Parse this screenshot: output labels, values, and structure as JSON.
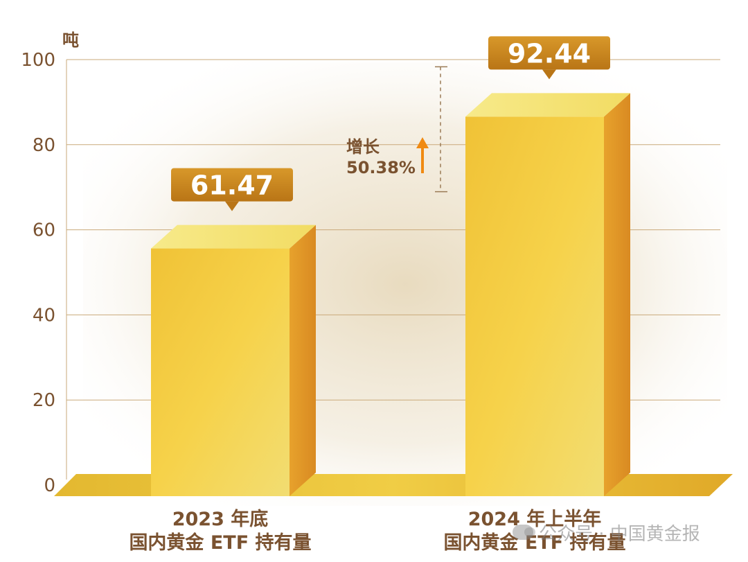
{
  "chart_data": {
    "type": "bar",
    "unit_label": "吨",
    "categories": [
      {
        "line1": "2023 年底",
        "line2": "国内黄金 ETF 持有量"
      },
      {
        "line1": "2024 年上半年",
        "line2": "国内黄金 ETF 持有量"
      }
    ],
    "values": [
      61.47,
      92.44
    ],
    "value_labels": [
      "61.47",
      "92.44"
    ],
    "ylim": [
      0,
      100
    ],
    "yticks": [
      0,
      20,
      40,
      60,
      80,
      100
    ],
    "grid": true,
    "annotation": {
      "line1": "增长",
      "line2": "50.38%"
    },
    "colors": {
      "bar_front": "#f3c93a",
      "bar_side": "#e29a28",
      "label_box": "#c9861d",
      "axis_text": "#7a5230",
      "arrow": "#f08a12"
    }
  },
  "watermark": {
    "text": "公众号 · 中国黄金报",
    "icon": "wechat-icon"
  }
}
